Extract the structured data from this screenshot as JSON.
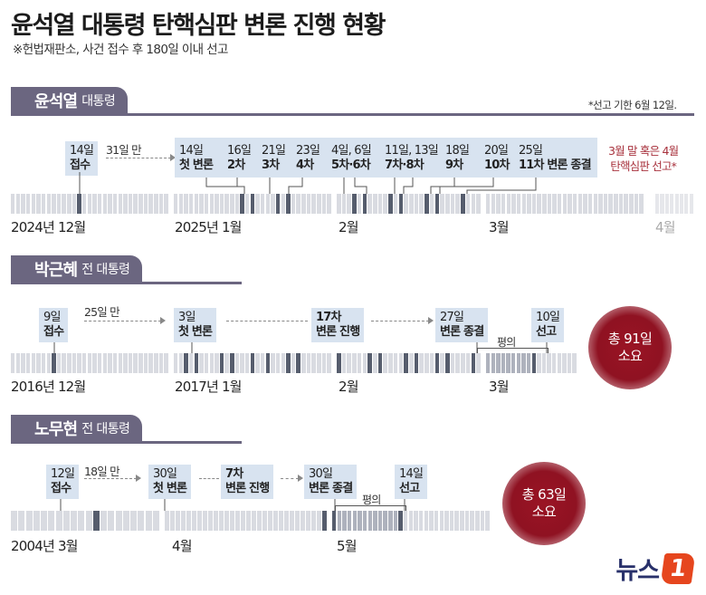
{
  "title": "윤석열 대통령 탄핵심판 변론 진행 현황",
  "subtitle": "※헌법재판소, 사건 접수 후 180일 이내 선고",
  "colors": {
    "header": "#6b6680",
    "box": "#d8e3f0",
    "bar_light": "#d9dbe1",
    "bar_mid": "#aeb2bd",
    "bar_dark": "#565d6d",
    "red": "#a8323d",
    "bubble": "#8f1222"
  },
  "sections": [
    {
      "name": "윤석열",
      "rank": "대통령",
      "note": "*선고 기한 6월 12일.",
      "gap_label": "31일 만",
      "events": [
        {
          "day": "14일",
          "label": "접수"
        },
        {
          "day": "14일",
          "label": "첫 변론"
        },
        {
          "day": "16일",
          "label": "2차"
        },
        {
          "day": "21일",
          "label": "3차"
        },
        {
          "day": "23일",
          "label": "4차"
        },
        {
          "day": "4일, 6일",
          "label": "5차·6차"
        },
        {
          "day": "11일, 13일",
          "label": "7차·8차"
        },
        {
          "day": "18일",
          "label": "9차"
        },
        {
          "day": "20일",
          "label": "10차"
        },
        {
          "day": "25일",
          "label": "11차 변론 종결"
        }
      ],
      "forecast": [
        "3월 말 혹은 4월",
        "탄핵심판 선고*"
      ],
      "axis": [
        "2024년 12월",
        "2025년 1월",
        "2월",
        "3월",
        "4월"
      ]
    },
    {
      "name": "박근혜",
      "rank": "전 대통령",
      "gap_label": "25일 만",
      "events": [
        {
          "day": "9일",
          "label": "접수"
        },
        {
          "day": "3일",
          "label": "첫 변론"
        },
        {
          "day": "17차",
          "label": "변론 진행"
        },
        {
          "day": "27일",
          "label": "변론 종결"
        },
        {
          "day": "10일",
          "label": "선고"
        }
      ],
      "deliberation": "평의",
      "total": [
        "총 91일",
        "소요"
      ],
      "axis": [
        "2016년 12월",
        "2017년 1월",
        "2월",
        "3월"
      ]
    },
    {
      "name": "노무현",
      "rank": "전 대통령",
      "gap_label": "18일 만",
      "events": [
        {
          "day": "12일",
          "label": "접수"
        },
        {
          "day": "30일",
          "label": "첫 변론"
        },
        {
          "day": "7차",
          "label": "변론 진행"
        },
        {
          "day": "30일",
          "label": "변론 종결"
        },
        {
          "day": "14일",
          "label": "선고"
        }
      ],
      "deliberation": "평의",
      "total": [
        "총 63일",
        "소요"
      ],
      "axis": [
        "2004년 3월",
        "4월",
        "5월"
      ]
    }
  ],
  "logo": {
    "text": "뉴스",
    "mark": "1"
  }
}
